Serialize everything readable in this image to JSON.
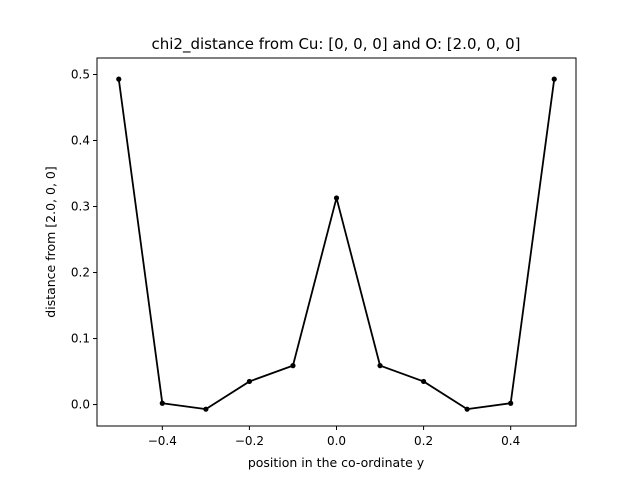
{
  "chart_data": {
    "type": "line",
    "title": "chi2_distance from Cu: [0, 0, 0] and O: [2.0, 0, 0]",
    "xlabel": "position in the co-ordinate y",
    "ylabel": "distance from [2.0, 0, 0]",
    "xlim": [
      -0.55,
      0.55
    ],
    "ylim": [
      -0.0325,
      0.525
    ],
    "x_ticks": [
      -0.4,
      -0.2,
      0.0,
      0.2,
      0.4
    ],
    "x_tick_labels": [
      "−0.4",
      "−0.2",
      "0.0",
      "0.2",
      "0.4"
    ],
    "y_ticks": [
      0.0,
      0.1,
      0.2,
      0.3,
      0.4,
      0.5
    ],
    "y_tick_labels": [
      "0.0",
      "0.1",
      "0.2",
      "0.3",
      "0.4",
      "0.5"
    ],
    "grid": false,
    "legend": "none",
    "line_color": "#000000",
    "marker": "dot",
    "series": [
      {
        "x": [
          -0.5,
          -0.4,
          -0.3,
          -0.2,
          -0.1,
          0.0,
          0.1,
          0.2,
          0.3,
          0.4,
          0.5
        ],
        "y": [
          0.493,
          0.002,
          -0.007,
          0.035,
          0.059,
          0.313,
          0.059,
          0.035,
          -0.007,
          0.002,
          0.493
        ]
      }
    ]
  }
}
